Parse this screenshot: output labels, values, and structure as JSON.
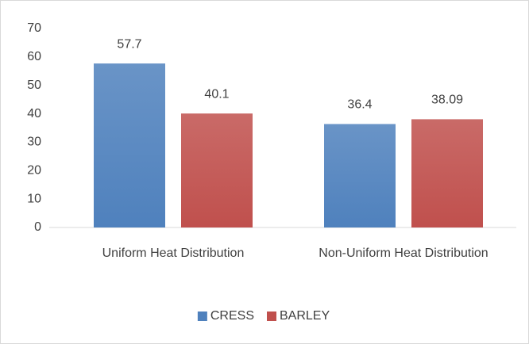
{
  "chart_data": {
    "type": "bar",
    "categories": [
      "Uniform Heat Distribution",
      "Non-Uniform Heat Distribution"
    ],
    "series": [
      {
        "name": "CRESS",
        "color": "#4f81bd",
        "values": [
          57.7,
          36.4
        ]
      },
      {
        "name": "BARLEY",
        "color": "#c0504d",
        "values": [
          40.1,
          38.09
        ]
      }
    ],
    "ylim": [
      0,
      70
    ],
    "yticks": [
      0,
      10,
      20,
      30,
      40,
      50,
      60,
      70
    ],
    "grid": false,
    "legend": "bottom"
  }
}
